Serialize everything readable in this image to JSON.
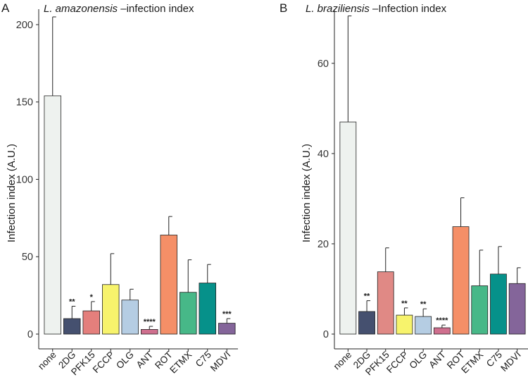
{
  "chart_data": [
    {
      "type": "bar",
      "panel_label": "A",
      "title_species": "L. amazonensis",
      "title_suffix": " –infection index",
      "xlabel": "",
      "ylabel": "Infection index (A.U.)",
      "ylim": [
        0,
        210
      ],
      "yticks": [
        0,
        50,
        100,
        150,
        200
      ],
      "categories": [
        "none",
        "2DG",
        "PFK15",
        "FCCP",
        "OLG",
        "ANT",
        "ROT",
        "ETMX",
        "C75",
        "MDVI"
      ],
      "values": [
        154,
        10,
        15,
        32,
        22,
        3,
        64,
        27,
        33,
        7
      ],
      "error_upper": [
        205,
        18,
        21,
        52,
        29,
        5,
        76,
        48,
        45,
        10
      ],
      "significance": [
        "",
        "**",
        "*",
        "",
        "",
        "****",
        "",
        "",
        "",
        "***"
      ],
      "colors": [
        "#eef2ef",
        "#45506f",
        "#e47f7c",
        "#f7f36c",
        "#b5cde3",
        "#cf6f8e",
        "#f58f67",
        "#47b888",
        "#06918a",
        "#84659a"
      ]
    },
    {
      "type": "bar",
      "panel_label": "B",
      "title_species": "L. braziliensis",
      "title_suffix": " –Infection index",
      "xlabel": "",
      "ylabel": "Infection index (A.U.)",
      "ylim": [
        0,
        72
      ],
      "yticks": [
        0,
        20,
        40,
        60
      ],
      "categories": [
        "none",
        "2DG",
        "PFK15",
        "FCCP",
        "OLG",
        "ANT",
        "ROT",
        "ETMX",
        "C75",
        "MDVI"
      ],
      "values": [
        47,
        5,
        13.8,
        4.2,
        3.9,
        1.4,
        23.8,
        10.7,
        13.3,
        11.2
      ],
      "error_upper": [
        70.5,
        7.4,
        19.1,
        5.8,
        5.6,
        2,
        30.2,
        18.6,
        19.4,
        14.7
      ],
      "significance": [
        "",
        "**",
        "",
        "**",
        "**",
        "****",
        "",
        "",
        "",
        ""
      ],
      "colors": [
        "#eef2ef",
        "#45506f",
        "#e08985",
        "#f7f36c",
        "#b5cde3",
        "#cf6f8e",
        "#f58f67",
        "#47b888",
        "#06918a",
        "#84659a"
      ]
    }
  ]
}
